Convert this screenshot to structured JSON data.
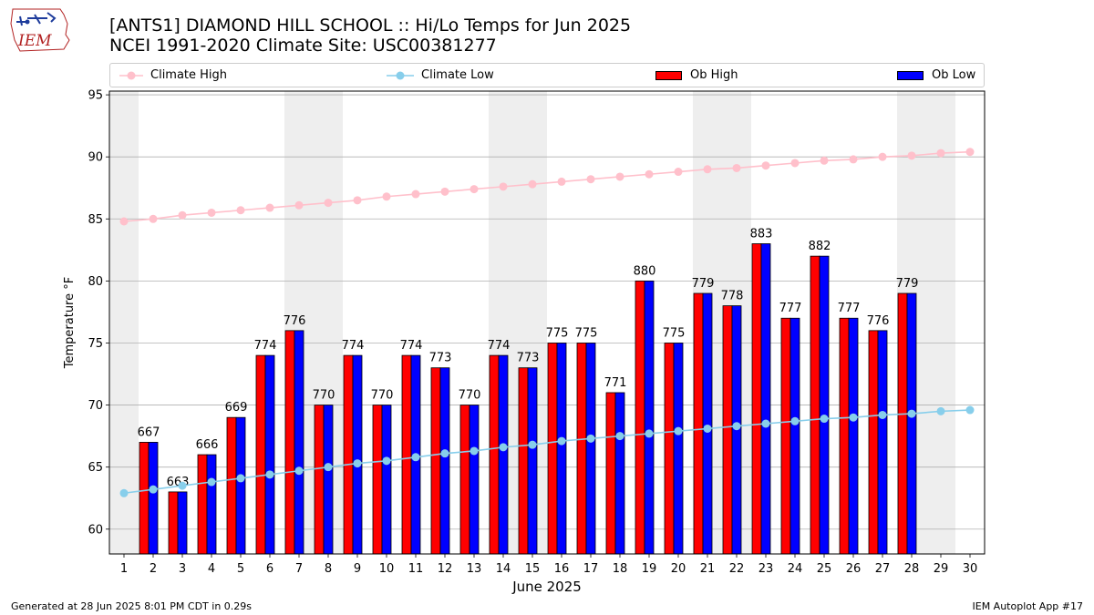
{
  "header": {
    "logo_text": "IEM",
    "title_line1": "[ANTS1] DIAMOND HILL SCHOOL :: Hi/Lo Temps for Jun 2025",
    "title_line2": "NCEI 1991-2020 Climate Site: USC00381277"
  },
  "legend": [
    {
      "label": "Climate High",
      "color": "#ffc0cb",
      "kind": "line"
    },
    {
      "label": "Climate Low",
      "color": "#87ceeb",
      "kind": "line"
    },
    {
      "label": "Ob High",
      "color": "#ff0000",
      "kind": "bar"
    },
    {
      "label": "Ob Low",
      "color": "#0000ff",
      "kind": "bar"
    }
  ],
  "footer": {
    "generated": "Generated at 28 Jun 2025 8:01 PM CDT in 0.29s",
    "app": "IEM Autoplot App #17"
  },
  "chart_data": {
    "type": "bar",
    "xlabel": "June 2025",
    "ylabel": "Temperature °F",
    "ylim": [
      58,
      95.3
    ],
    "yticks": [
      60,
      65,
      70,
      75,
      80,
      85,
      90,
      95
    ],
    "days": [
      1,
      2,
      3,
      4,
      5,
      6,
      7,
      8,
      9,
      10,
      11,
      12,
      13,
      14,
      15,
      16,
      17,
      18,
      19,
      20,
      21,
      22,
      23,
      24,
      25,
      26,
      27,
      28,
      29,
      30
    ],
    "weekend_bands": [
      [
        1,
        1
      ],
      [
        7,
        8
      ],
      [
        14,
        15
      ],
      [
        21,
        22
      ],
      [
        28,
        29
      ]
    ],
    "grid": "horizontal",
    "series": [
      {
        "name": "Ob High",
        "color": "#ff0000",
        "type": "bar",
        "values": [
          null,
          67,
          63,
          66,
          69,
          74,
          76,
          70,
          74,
          70,
          74,
          73,
          70,
          74,
          73,
          75,
          75,
          71,
          80,
          75,
          79,
          78,
          83,
          77,
          82,
          77,
          76,
          79,
          null,
          null
        ]
      },
      {
        "name": "Ob Low",
        "color": "#0000ff",
        "type": "bar",
        "values": [
          null,
          67,
          63,
          66,
          69,
          74,
          76,
          70,
          74,
          70,
          74,
          73,
          70,
          74,
          73,
          75,
          75,
          71,
          80,
          75,
          79,
          78,
          83,
          77,
          82,
          77,
          76,
          79,
          null,
          null
        ]
      },
      {
        "name": "Climate High",
        "color": "#ffc0cb",
        "type": "line",
        "values": [
          84.8,
          85.0,
          85.3,
          85.5,
          85.7,
          85.9,
          86.1,
          86.3,
          86.5,
          86.8,
          87.0,
          87.2,
          87.4,
          87.6,
          87.8,
          88.0,
          88.2,
          88.4,
          88.6,
          88.8,
          89.0,
          89.1,
          89.3,
          89.5,
          89.7,
          89.8,
          90.0,
          90.1,
          90.3,
          90.4
        ]
      },
      {
        "name": "Climate Low",
        "color": "#87ceeb",
        "type": "line",
        "values": [
          62.9,
          63.2,
          63.5,
          63.8,
          64.1,
          64.4,
          64.7,
          65.0,
          65.3,
          65.5,
          65.8,
          66.1,
          66.3,
          66.6,
          66.8,
          67.1,
          67.3,
          67.5,
          67.7,
          67.9,
          68.1,
          68.3,
          68.5,
          68.7,
          68.9,
          69.0,
          69.2,
          69.3,
          69.5,
          69.6
        ]
      }
    ],
    "bar_labels": [
      "",
      "667",
      "663",
      "666",
      "669",
      "774",
      "776",
      "770",
      "774",
      "770",
      "774",
      "773",
      "770",
      "774",
      "773",
      "775",
      "775",
      "771",
      "880",
      "775",
      "779",
      "778",
      "883",
      "777",
      "882",
      "777",
      "776",
      "779",
      "",
      ""
    ]
  }
}
